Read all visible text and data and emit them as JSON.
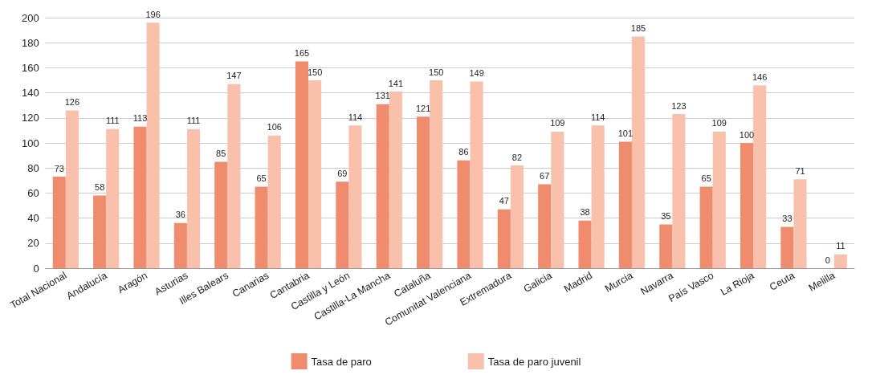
{
  "chart_data": {
    "type": "bar",
    "categories": [
      "Total Nacional",
      "Andalucía",
      "Aragón",
      "Asturias",
      "Illes Balears",
      "Canarias",
      "Cantabria",
      "Castilla y León",
      "Castilla-La Mancha",
      "Cataluña",
      "Comunitat Valenciana",
      "Extremadura",
      "Galicia",
      "Madrid",
      "Murcia",
      "Navarra",
      "País Vasco",
      "La Rioja",
      "Ceuta",
      "Melilla"
    ],
    "series": [
      {
        "name": "Tasa de paro",
        "color": "#f08c6e",
        "values": [
          73,
          58,
          113,
          36,
          85,
          65,
          165,
          69,
          131,
          121,
          86,
          47,
          67,
          38,
          101,
          35,
          65,
          100,
          33,
          0
        ]
      },
      {
        "name": "Tasa de paro juvenil",
        "color": "#f9c1ab",
        "values": [
          126,
          111,
          196,
          111,
          147,
          106,
          150,
          114,
          141,
          150,
          149,
          82,
          109,
          114,
          185,
          123,
          109,
          146,
          71,
          11
        ]
      }
    ],
    "ylim": [
      0,
      200
    ],
    "yticks": [
      0,
      20,
      40,
      60,
      80,
      100,
      120,
      140,
      160,
      180,
      200
    ],
    "grid": "y",
    "legend": "bottom",
    "data_labels": true
  }
}
